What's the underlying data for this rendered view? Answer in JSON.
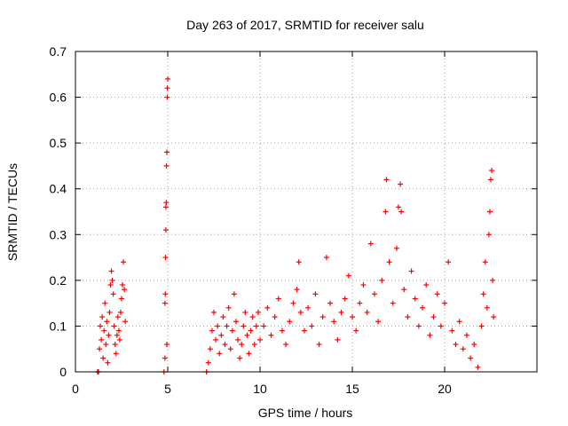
{
  "chart_data": {
    "type": "scatter",
    "title": "Day 263 of 2017, SRMTID for receiver salu",
    "xlabel": "GPS time / hours",
    "ylabel": "SRMTID / TECUs",
    "xlim": [
      0,
      25
    ],
    "ylim": [
      0,
      0.7
    ],
    "xticks": [
      0,
      5,
      10,
      15,
      20
    ],
    "xtick_labels": [
      "0",
      "5",
      "10",
      "15",
      "20"
    ],
    "yticks": [
      0,
      0.1,
      0.2,
      0.3,
      0.4,
      0.5,
      0.6,
      0.7
    ],
    "ytick_labels": [
      "0",
      "0.1",
      "0.2",
      "0.3",
      "0.4",
      "0.5",
      "0.6",
      "0.7"
    ],
    "grid": true,
    "marker": "+",
    "marker_color": "#ff0000",
    "series": [
      {
        "name": "SRMTID",
        "points": [
          [
            1.2,
            0.0
          ],
          [
            1.25,
            0.0
          ],
          [
            1.3,
            0.05
          ],
          [
            1.35,
            0.1
          ],
          [
            1.4,
            0.07
          ],
          [
            1.45,
            0.12
          ],
          [
            1.5,
            0.03
          ],
          [
            1.55,
            0.09
          ],
          [
            1.6,
            0.15
          ],
          [
            1.65,
            0.06
          ],
          [
            1.7,
            0.11
          ],
          [
            1.75,
            0.02
          ],
          [
            1.8,
            0.08
          ],
          [
            1.85,
            0.13
          ],
          [
            1.9,
            0.19
          ],
          [
            1.95,
            0.22
          ],
          [
            2.0,
            0.2
          ],
          [
            2.05,
            0.17
          ],
          [
            2.1,
            0.1
          ],
          [
            2.15,
            0.06
          ],
          [
            2.2,
            0.04
          ],
          [
            2.25,
            0.08
          ],
          [
            2.3,
            0.12
          ],
          [
            2.35,
            0.09
          ],
          [
            2.4,
            0.07
          ],
          [
            2.45,
            0.13
          ],
          [
            2.5,
            0.16
          ],
          [
            2.55,
            0.19
          ],
          [
            2.6,
            0.24
          ],
          [
            2.65,
            0.18
          ],
          [
            2.7,
            0.11
          ],
          [
            4.8,
            0.0
          ],
          [
            4.85,
            0.03
          ],
          [
            4.85,
            0.15
          ],
          [
            4.87,
            0.17
          ],
          [
            4.88,
            0.25
          ],
          [
            4.9,
            0.31
          ],
          [
            4.9,
            0.36
          ],
          [
            4.92,
            0.37
          ],
          [
            4.93,
            0.45
          ],
          [
            4.95,
            0.48
          ],
          [
            4.97,
            0.6
          ],
          [
            4.98,
            0.62
          ],
          [
            5.0,
            0.64
          ],
          [
            4.95,
            0.06
          ],
          [
            7.1,
            0.0
          ],
          [
            7.2,
            0.02
          ],
          [
            7.3,
            0.05
          ],
          [
            7.4,
            0.09
          ],
          [
            7.5,
            0.13
          ],
          [
            7.6,
            0.07
          ],
          [
            7.7,
            0.1
          ],
          [
            7.8,
            0.04
          ],
          [
            7.9,
            0.08
          ],
          [
            8.0,
            0.12
          ],
          [
            8.1,
            0.06
          ],
          [
            8.2,
            0.1
          ],
          [
            8.3,
            0.14
          ],
          [
            8.4,
            0.05
          ],
          [
            8.5,
            0.09
          ],
          [
            8.6,
            0.17
          ],
          [
            8.7,
            0.11
          ],
          [
            8.8,
            0.07
          ],
          [
            8.9,
            0.03
          ],
          [
            9.0,
            0.06
          ],
          [
            9.1,
            0.1
          ],
          [
            9.2,
            0.13
          ],
          [
            9.3,
            0.08
          ],
          [
            9.4,
            0.04
          ],
          [
            9.5,
            0.09
          ],
          [
            9.6,
            0.12
          ],
          [
            9.7,
            0.06
          ],
          [
            9.8,
            0.1
          ],
          [
            9.9,
            0.13
          ],
          [
            10.0,
            0.07
          ],
          [
            10.2,
            0.1
          ],
          [
            10.4,
            0.14
          ],
          [
            10.6,
            0.08
          ],
          [
            10.8,
            0.12
          ],
          [
            11.0,
            0.16
          ],
          [
            11.2,
            0.09
          ],
          [
            11.4,
            0.06
          ],
          [
            11.6,
            0.11
          ],
          [
            11.8,
            0.15
          ],
          [
            12.0,
            0.18
          ],
          [
            12.1,
            0.24
          ],
          [
            12.2,
            0.13
          ],
          [
            12.4,
            0.09
          ],
          [
            12.6,
            0.14
          ],
          [
            12.8,
            0.1
          ],
          [
            13.0,
            0.17
          ],
          [
            13.2,
            0.06
          ],
          [
            13.4,
            0.12
          ],
          [
            13.6,
            0.25
          ],
          [
            13.8,
            0.15
          ],
          [
            14.0,
            0.11
          ],
          [
            14.2,
            0.07
          ],
          [
            14.4,
            0.13
          ],
          [
            14.6,
            0.16
          ],
          [
            14.8,
            0.21
          ],
          [
            15.0,
            0.12
          ],
          [
            15.2,
            0.09
          ],
          [
            15.4,
            0.15
          ],
          [
            15.6,
            0.19
          ],
          [
            15.8,
            0.13
          ],
          [
            16.0,
            0.28
          ],
          [
            16.2,
            0.17
          ],
          [
            16.4,
            0.11
          ],
          [
            16.6,
            0.2
          ],
          [
            16.8,
            0.35
          ],
          [
            16.85,
            0.42
          ],
          [
            17.0,
            0.24
          ],
          [
            17.2,
            0.15
          ],
          [
            17.4,
            0.27
          ],
          [
            17.5,
            0.36
          ],
          [
            17.6,
            0.41
          ],
          [
            17.65,
            0.35
          ],
          [
            17.8,
            0.18
          ],
          [
            18.0,
            0.12
          ],
          [
            18.2,
            0.22
          ],
          [
            18.4,
            0.16
          ],
          [
            18.6,
            0.1
          ],
          [
            18.8,
            0.14
          ],
          [
            19.0,
            0.19
          ],
          [
            19.2,
            0.08
          ],
          [
            19.4,
            0.12
          ],
          [
            19.6,
            0.17
          ],
          [
            19.8,
            0.1
          ],
          [
            20.0,
            0.15
          ],
          [
            20.2,
            0.24
          ],
          [
            20.4,
            0.09
          ],
          [
            20.6,
            0.06
          ],
          [
            20.8,
            0.11
          ],
          [
            21.0,
            0.05
          ],
          [
            21.2,
            0.08
          ],
          [
            21.4,
            0.03
          ],
          [
            21.6,
            0.06
          ],
          [
            21.8,
            0.01
          ],
          [
            22.0,
            0.1
          ],
          [
            22.1,
            0.17
          ],
          [
            22.2,
            0.24
          ],
          [
            22.3,
            0.14
          ],
          [
            22.4,
            0.3
          ],
          [
            22.45,
            0.35
          ],
          [
            22.5,
            0.42
          ],
          [
            22.55,
            0.44
          ],
          [
            22.6,
            0.2
          ],
          [
            22.65,
            0.12
          ]
        ]
      }
    ]
  }
}
